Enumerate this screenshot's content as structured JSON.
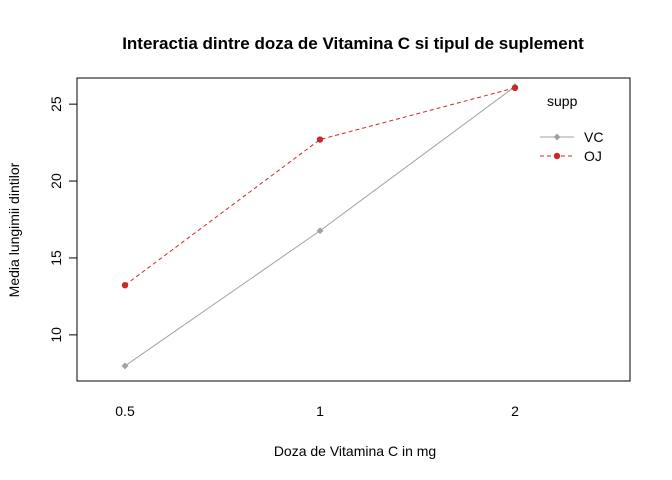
{
  "chart_data": {
    "type": "line",
    "title": "Interactia dintre doza de Vitamina C si tipul de suplement",
    "xlabel": "Doza de Vitamina C in mg",
    "ylabel": "Media lungimii dintilor",
    "categories": [
      "0.5",
      "1",
      "2"
    ],
    "y_ticks": [
      10,
      15,
      20,
      25
    ],
    "ylim": [
      7.0,
      26.7
    ],
    "legend_title": "supp",
    "legend_position": "top-right",
    "series": [
      {
        "name": "VC",
        "values": [
          7.98,
          16.77,
          26.14
        ],
        "color": "#a0a0a0",
        "line_style": "solid",
        "marker": "diamond"
      },
      {
        "name": "OJ",
        "values": [
          13.23,
          22.7,
          26.06
        ],
        "color": "#c62b2b",
        "line_style": "dashed",
        "marker": "circle"
      }
    ]
  }
}
